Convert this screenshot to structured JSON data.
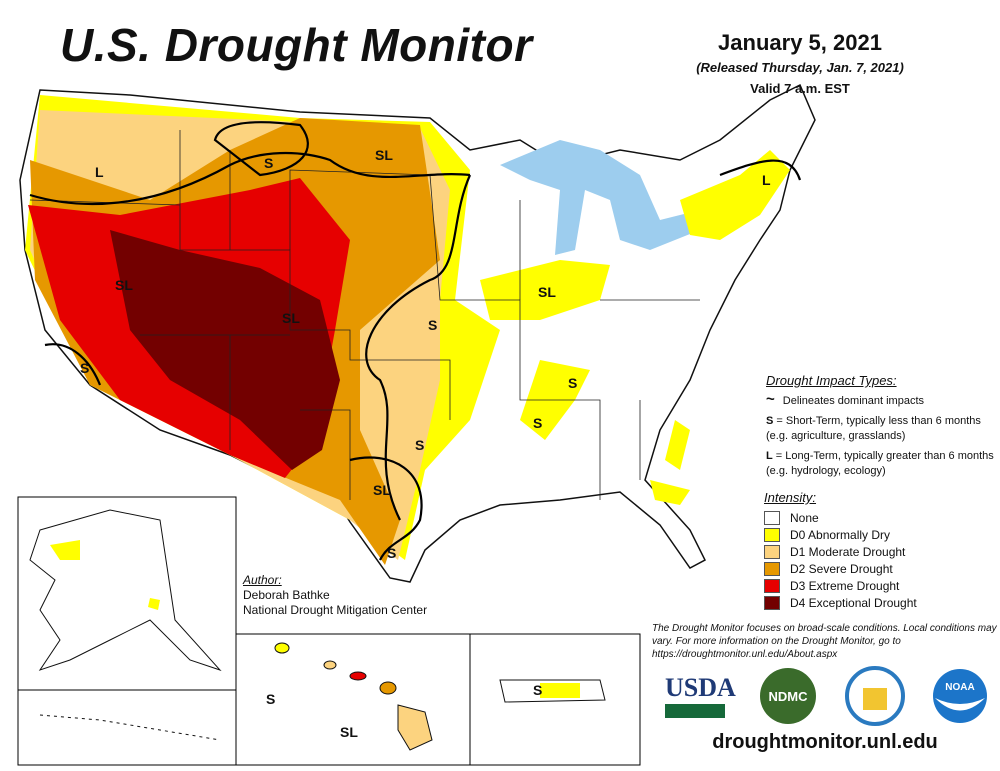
{
  "header": {
    "title": "U.S. Drought Monitor",
    "date": "January 5, 2021",
    "released": "(Released Thursday, Jan. 7, 2021)",
    "valid": "Valid 7 a.m. EST"
  },
  "map_labels": [
    "L",
    "S",
    "SL",
    "SL",
    "SL",
    "S",
    "S",
    "SL",
    "S",
    "S",
    "S",
    "SL",
    "S",
    "L"
  ],
  "inset_labels": {
    "hawaii_s": "S",
    "hawaii_sl": "SL",
    "puerto_rico_s": "S"
  },
  "impact_types": {
    "heading": "Drought Impact Types:",
    "line_desc": "Delineates dominant impacts",
    "short_key": "S",
    "short_desc": " = Short-Term, typically less than 6 months (e.g. agriculture, grasslands)",
    "long_key": "L",
    "long_desc": " = Long-Term, typically greater than 6 months (e.g. hydrology, ecology)"
  },
  "intensity": {
    "heading": "Intensity:",
    "items": [
      {
        "label": "None",
        "color": "#ffffff"
      },
      {
        "label": "D0 Abnormally Dry",
        "color": "#ffff00"
      },
      {
        "label": "D1 Moderate Drought",
        "color": "#fcd37f"
      },
      {
        "label": "D2 Severe Drought",
        "color": "#e69800"
      },
      {
        "label": "D3 Extreme Drought",
        "color": "#e60000"
      },
      {
        "label": "D4 Exceptional Drought",
        "color": "#730000"
      }
    ]
  },
  "author": {
    "heading": "Author:",
    "name": "Deborah Bathke",
    "org": "National Drought Mitigation Center"
  },
  "disclaimer": "The Drought Monitor focuses on broad-scale conditions. Local conditions may vary. For more information on the Drought Monitor, go to https://droughtmonitor.unl.edu/About.aspx",
  "logos": {
    "usda": "USDA",
    "ndmc": "NDMC",
    "commerce": "commerce-seal",
    "noaa": "NOAA"
  },
  "url": "droughtmonitor.unl.edu"
}
